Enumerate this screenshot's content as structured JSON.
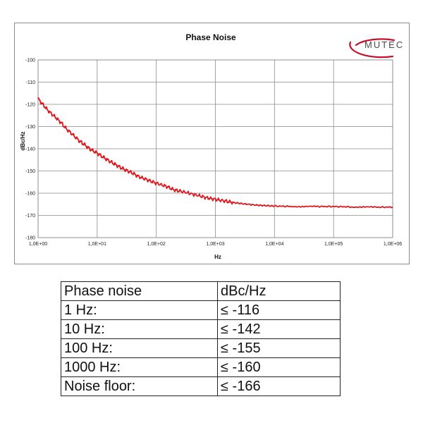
{
  "brand": {
    "name": "MUTEC",
    "color": "#c8102e"
  },
  "chart_data": {
    "type": "line",
    "title": "Phase Noise",
    "xlabel": "Hz",
    "ylabel": "dBc/Hz",
    "xscale": "log",
    "xlim": [
      1,
      1000000
    ],
    "ylim": [
      -180,
      -100
    ],
    "xticks": [
      "1,0E+00",
      "1,0E+01",
      "1,0E+02",
      "1,0E+03",
      "1,0E+04",
      "1,0E+05",
      "1,0E+06"
    ],
    "yticks": [
      "-100",
      "-110",
      "-120",
      "-130",
      "-140",
      "-150",
      "-160",
      "-170",
      "-180"
    ],
    "grid": true,
    "series": [
      {
        "color": "#e0191f",
        "x": [
          1,
          1.2,
          1.5,
          2,
          2.5,
          3,
          4,
          5,
          6,
          7,
          8,
          10,
          13,
          16,
          20,
          25,
          30,
          40,
          50,
          70,
          100,
          150,
          200,
          300,
          500,
          700,
          1000,
          1500,
          2000,
          3000,
          5000,
          7000,
          10000,
          20000,
          50000,
          100000,
          200000,
          500000,
          1000000
        ],
        "y": [
          -117.5,
          -120,
          -123,
          -126,
          -128.5,
          -131,
          -134,
          -136.5,
          -138,
          -139.5,
          -140.5,
          -142,
          -144,
          -145.5,
          -147,
          -148.5,
          -149.5,
          -151,
          -152.5,
          -154,
          -155.5,
          -157,
          -158.5,
          -159.5,
          -161,
          -162,
          -162.8,
          -163.6,
          -164.2,
          -164.8,
          -165.4,
          -165.6,
          -165.8,
          -166,
          -166,
          -166,
          -166.2,
          -166.3,
          -166.3
        ]
      }
    ]
  },
  "spec_table": {
    "rows": [
      [
        "Phase noise",
        "dBc/Hz"
      ],
      [
        "1 Hz:",
        "≤ -116"
      ],
      [
        "10 Hz:",
        "≤ -142"
      ],
      [
        "100 Hz:",
        "≤ -155"
      ],
      [
        "1000 Hz:",
        "≤ -160"
      ],
      [
        "Noise floor:",
        "≤ -166"
      ]
    ]
  }
}
